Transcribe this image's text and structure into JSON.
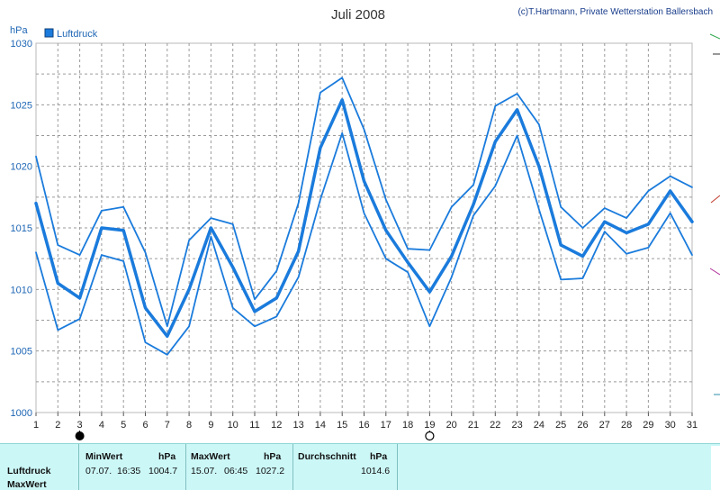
{
  "chart_data": {
    "type": "line",
    "title": "Juli 2008",
    "credit": "(c)T.Hartmann, Private Wetterstation Ballersbach",
    "ylabel": "hPa",
    "ylim": [
      1000,
      1030
    ],
    "yticks": [
      1000,
      1005,
      1010,
      1015,
      1020,
      1025,
      1030
    ],
    "x": [
      1,
      2,
      3,
      4,
      5,
      6,
      7,
      8,
      9,
      10,
      11,
      12,
      13,
      14,
      15,
      16,
      17,
      18,
      19,
      20,
      21,
      22,
      23,
      24,
      25,
      26,
      27,
      28,
      29,
      30,
      31
    ],
    "xlim": [
      1,
      31
    ],
    "grid": true,
    "legend": {
      "label": "Luftdruck",
      "placement": "top-left"
    },
    "series": [
      {
        "role": "max",
        "values": [
          1020.8,
          1013.6,
          1012.8,
          1016.4,
          1016.7,
          1013.0,
          1007.0,
          1014.0,
          1015.8,
          1015.3,
          1009.2,
          1011.5,
          1017.0,
          1026.0,
          1027.2,
          1023.0,
          1017.3,
          1013.3,
          1013.2,
          1016.7,
          1018.5,
          1024.9,
          1025.9,
          1023.4,
          1016.7,
          1015.0,
          1016.6,
          1015.8,
          1018.0,
          1019.2,
          1018.3
        ]
      },
      {
        "role": "avg",
        "values": [
          1017.0,
          1010.5,
          1009.3,
          1015.0,
          1014.8,
          1008.5,
          1006.2,
          1010.0,
          1015.0,
          1011.8,
          1008.2,
          1009.3,
          1013.1,
          1021.5,
          1025.4,
          1018.8,
          1014.8,
          1012.2,
          1009.8,
          1012.7,
          1016.9,
          1022.0,
          1024.6,
          1020.0,
          1013.6,
          1012.7,
          1015.5,
          1014.6,
          1015.3,
          1018.0,
          1015.5
        ]
      },
      {
        "role": "min",
        "values": [
          1013.0,
          1006.7,
          1007.6,
          1012.8,
          1012.3,
          1005.7,
          1004.7,
          1007.0,
          1014.3,
          1008.5,
          1007.0,
          1007.8,
          1011.0,
          1017.3,
          1022.7,
          1016.2,
          1012.5,
          1011.4,
          1007.0,
          1011.0,
          1016.0,
          1018.4,
          1022.5,
          1016.5,
          1010.8,
          1010.9,
          1014.7,
          1012.9,
          1013.4,
          1016.2,
          1012.8
        ]
      }
    ],
    "colors": {
      "line": "#1a7bdc",
      "grid": "#9a9a9a",
      "axis_text": "#1f67b5"
    }
  },
  "markers": {
    "full_moon_day": 3,
    "new_moon_day": 19
  },
  "stats": {
    "row_label": "Luftdruck",
    "row_label2": "MaxWert",
    "min_header": "MinWert",
    "max_header": "MaxWert",
    "avg_header": "Durchschnitt",
    "unit": "hPa",
    "min_date": "07.07.",
    "min_time": "16:35",
    "min_value": "1004.7",
    "max_date": "15.07.",
    "max_time": "06:45",
    "max_value": "1027.2",
    "avg_value": "1014.6"
  }
}
